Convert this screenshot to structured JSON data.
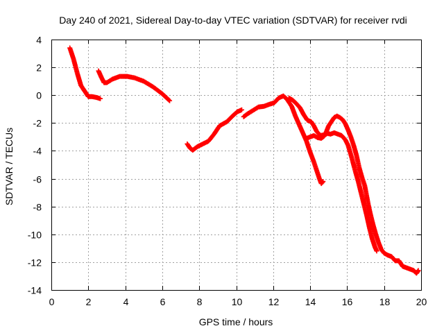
{
  "chart_data": {
    "type": "scatter",
    "title": "Day 240 of 2021, Sidereal Day-to-day VTEC variation (SDTVAR) for receiver rvdi",
    "xlabel": "GPS time / hours",
    "ylabel": "SDTVAR / TECUs",
    "xlim": [
      0,
      20
    ],
    "ylim": [
      -14,
      4
    ],
    "xticks": [
      0,
      2,
      4,
      6,
      8,
      10,
      12,
      14,
      16,
      18,
      20
    ],
    "yticks": [
      -14,
      -12,
      -10,
      -8,
      -6,
      -4,
      -2,
      0,
      2,
      4
    ],
    "grid": true,
    "marker": "plus",
    "series": [
      {
        "name": "SDTVAR",
        "color": "#ff0000",
        "segments": [
          [
            [
              1.0,
              3.4
            ],
            [
              1.2,
              2.6
            ],
            [
              1.4,
              1.6
            ],
            [
              1.6,
              0.7
            ],
            [
              1.8,
              0.3
            ],
            [
              2.0,
              -0.1
            ],
            [
              2.2,
              -0.1
            ],
            [
              2.4,
              -0.15
            ],
            [
              2.65,
              -0.25
            ]
          ],
          [
            [
              2.55,
              1.75
            ],
            [
              2.7,
              1.3
            ],
            [
              2.85,
              0.9
            ],
            [
              3.0,
              0.9
            ],
            [
              3.3,
              1.15
            ],
            [
              3.7,
              1.35
            ],
            [
              4.1,
              1.35
            ],
            [
              4.5,
              1.25
            ],
            [
              5.0,
              1.0
            ],
            [
              5.5,
              0.6
            ],
            [
              6.0,
              0.1
            ],
            [
              6.4,
              -0.4
            ]
          ],
          [
            [
              7.35,
              -3.5
            ],
            [
              7.5,
              -3.8
            ],
            [
              7.65,
              -3.95
            ],
            [
              7.9,
              -3.7
            ],
            [
              8.2,
              -3.5
            ],
            [
              8.5,
              -3.3
            ],
            [
              8.8,
              -2.8
            ],
            [
              9.1,
              -2.2
            ],
            [
              9.5,
              -1.9
            ],
            [
              9.8,
              -1.5
            ],
            [
              10.05,
              -1.2
            ],
            [
              10.3,
              -1.05
            ]
          ],
          [
            [
              10.4,
              -1.55
            ],
            [
              10.6,
              -1.35
            ],
            [
              10.9,
              -1.1
            ],
            [
              11.2,
              -0.85
            ],
            [
              11.5,
              -0.8
            ],
            [
              11.8,
              -0.65
            ],
            [
              12.05,
              -0.55
            ],
            [
              12.3,
              -0.2
            ],
            [
              12.55,
              -0.05
            ],
            [
              12.75,
              -0.3
            ],
            [
              13.0,
              -0.8
            ],
            [
              13.2,
              -1.5
            ],
            [
              13.4,
              -2.1
            ],
            [
              13.6,
              -2.7
            ],
            [
              13.8,
              -3.3
            ],
            [
              14.0,
              -4.1
            ],
            [
              14.2,
              -4.8
            ],
            [
              14.35,
              -5.4
            ],
            [
              14.5,
              -6.0
            ],
            [
              14.6,
              -6.35
            ],
            [
              14.7,
              -6.2
            ]
          ],
          [
            [
              12.85,
              -0.2
            ],
            [
              13.05,
              -0.35
            ],
            [
              13.25,
              -0.6
            ],
            [
              13.45,
              -0.9
            ],
            [
              13.65,
              -1.4
            ],
            [
              13.85,
              -1.8
            ],
            [
              14.05,
              -1.9
            ],
            [
              14.2,
              -2.2
            ],
            [
              14.35,
              -2.6
            ],
            [
              14.55,
              -2.9
            ],
            [
              14.75,
              -2.85
            ],
            [
              14.95,
              -2.75
            ],
            [
              15.1,
              -2.8
            ],
            [
              15.3,
              -2.7
            ],
            [
              15.5,
              -2.8
            ],
            [
              15.7,
              -2.9
            ],
            [
              15.9,
              -3.2
            ],
            [
              16.05,
              -3.6
            ],
            [
              16.25,
              -4.5
            ],
            [
              16.45,
              -5.5
            ],
            [
              16.6,
              -6.2
            ],
            [
              16.75,
              -7.0
            ],
            [
              16.9,
              -7.8
            ],
            [
              17.05,
              -8.6
            ],
            [
              17.2,
              -9.5
            ],
            [
              17.35,
              -10.3
            ],
            [
              17.5,
              -10.9
            ],
            [
              17.6,
              -11.2
            ]
          ],
          [
            [
              13.8,
              -3.1
            ],
            [
              14.0,
              -3.0
            ],
            [
              14.2,
              -2.9
            ],
            [
              14.4,
              -3.05
            ],
            [
              14.6,
              -3.1
            ],
            [
              14.75,
              -2.95
            ],
            [
              14.85,
              -2.7
            ],
            [
              15.0,
              -2.2
            ],
            [
              15.15,
              -1.9
            ],
            [
              15.3,
              -1.6
            ],
            [
              15.45,
              -1.5
            ],
            [
              15.6,
              -1.6
            ],
            [
              15.75,
              -1.75
            ],
            [
              15.9,
              -2.05
            ],
            [
              16.05,
              -2.5
            ],
            [
              16.2,
              -3.0
            ],
            [
              16.35,
              -3.6
            ],
            [
              16.5,
              -4.3
            ],
            [
              16.65,
              -5.2
            ],
            [
              16.8,
              -5.9
            ],
            [
              16.95,
              -6.5
            ],
            [
              17.05,
              -7.2
            ],
            [
              17.15,
              -7.9
            ],
            [
              17.25,
              -8.5
            ],
            [
              17.4,
              -9.3
            ],
            [
              17.55,
              -10.0
            ],
            [
              17.7,
              -10.6
            ],
            [
              17.85,
              -11.1
            ],
            [
              18.0,
              -11.35
            ],
            [
              18.2,
              -11.5
            ],
            [
              18.4,
              -11.6
            ],
            [
              18.6,
              -11.9
            ],
            [
              18.8,
              -11.9
            ],
            [
              19.0,
              -12.3
            ],
            [
              19.2,
              -12.4
            ],
            [
              19.4,
              -12.5
            ],
            [
              19.6,
              -12.6
            ],
            [
              19.75,
              -12.8
            ],
            [
              19.85,
              -12.6
            ]
          ]
        ]
      }
    ]
  }
}
